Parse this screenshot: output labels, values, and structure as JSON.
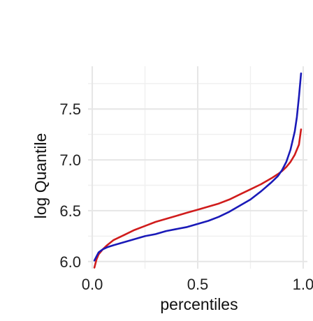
{
  "chart_data": {
    "type": "line",
    "title": "",
    "xlabel": "percentiles",
    "ylabel": "log Quantile",
    "xlim": [
      -0.02,
      1.02
    ],
    "ylim": [
      5.93,
      7.92
    ],
    "x_ticks": [
      0.0,
      0.5,
      1.0
    ],
    "x_tick_labels": [
      "0.0",
      "0.5",
      "1.0"
    ],
    "y_ticks": [
      6.0,
      6.5,
      7.0,
      7.5
    ],
    "y_tick_labels": [
      "6.0",
      "6.5",
      "7.0",
      "7.5"
    ],
    "grid": true,
    "legend": "none",
    "series": [
      {
        "color": "#d01c1c",
        "x": [
          0.01,
          0.02,
          0.03,
          0.05,
          0.07,
          0.1,
          0.15,
          0.2,
          0.25,
          0.3,
          0.35,
          0.4,
          0.45,
          0.5,
          0.55,
          0.6,
          0.65,
          0.7,
          0.75,
          0.8,
          0.85,
          0.88,
          0.9,
          0.92,
          0.94,
          0.96,
          0.98,
          0.99
        ],
        "y": [
          5.94,
          6.02,
          6.07,
          6.12,
          6.16,
          6.21,
          6.26,
          6.31,
          6.35,
          6.39,
          6.42,
          6.45,
          6.48,
          6.51,
          6.54,
          6.57,
          6.61,
          6.66,
          6.71,
          6.76,
          6.82,
          6.86,
          6.89,
          6.93,
          6.98,
          7.05,
          7.15,
          7.3
        ]
      },
      {
        "color": "#1a1ab8",
        "x": [
          0.01,
          0.02,
          0.03,
          0.05,
          0.07,
          0.1,
          0.15,
          0.2,
          0.25,
          0.3,
          0.35,
          0.4,
          0.45,
          0.5,
          0.55,
          0.6,
          0.65,
          0.7,
          0.75,
          0.8,
          0.85,
          0.88,
          0.9,
          0.92,
          0.94,
          0.96,
          0.97,
          0.98,
          0.99
        ],
        "y": [
          6.01,
          6.05,
          6.09,
          6.12,
          6.14,
          6.16,
          6.19,
          6.22,
          6.25,
          6.27,
          6.3,
          6.32,
          6.34,
          6.37,
          6.4,
          6.44,
          6.49,
          6.55,
          6.61,
          6.69,
          6.78,
          6.84,
          6.9,
          6.98,
          7.1,
          7.28,
          7.42,
          7.62,
          7.85
        ]
      }
    ]
  }
}
